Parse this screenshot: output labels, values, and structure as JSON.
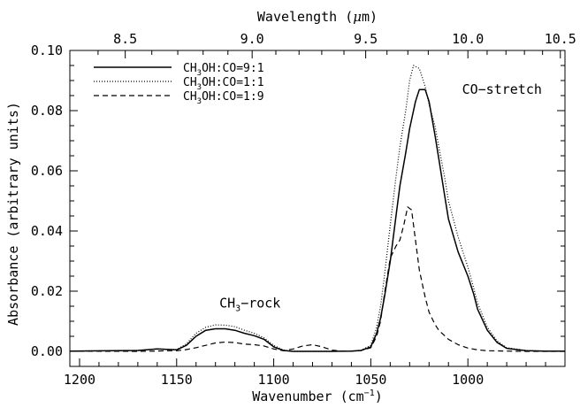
{
  "chart_data": {
    "type": "line",
    "xlabel": "Wavenumber (cm",
    "xlabel_sup": "−1",
    "xlabel_close": ")",
    "top_xlabel_pre": "Wavelength (",
    "top_xlabel_mu": "μ",
    "top_xlabel_post": "m)",
    "ylabel": "Absorbance (arbitrary units)",
    "xlim": [
      1205,
      950
    ],
    "ylim": [
      -0.005,
      0.1
    ],
    "x_reversed": true,
    "grid": false,
    "legend_position": "top-left",
    "x_ticks": [
      {
        "value": 1200,
        "label": "1200"
      },
      {
        "value": 1150,
        "label": "1150"
      },
      {
        "value": 1100,
        "label": "1100"
      },
      {
        "value": 1050,
        "label": "1050"
      },
      {
        "value": 1000,
        "label": "1000"
      }
    ],
    "x_minor_ticks": [
      1190,
      1180,
      1170,
      1160,
      1140,
      1130,
      1120,
      1110,
      1090,
      1080,
      1070,
      1060,
      1040,
      1030,
      1020,
      1010,
      990,
      980,
      970,
      960
    ],
    "y_ticks": [
      {
        "value": 0.0,
        "label": "0.00"
      },
      {
        "value": 0.02,
        "label": "0.02"
      },
      {
        "value": 0.04,
        "label": "0.04"
      },
      {
        "value": 0.06,
        "label": "0.06"
      },
      {
        "value": 0.08,
        "label": "0.08"
      },
      {
        "value": 0.1,
        "label": "0.10"
      }
    ],
    "y_minor_ticks": [
      0.005,
      0.01,
      0.015,
      0.025,
      0.03,
      0.035,
      0.045,
      0.05,
      0.055,
      0.065,
      0.07,
      0.075,
      0.085,
      0.09,
      0.095
    ],
    "top_ticks": [
      {
        "wavelength": 8.5,
        "label": "8.5"
      },
      {
        "wavelength": 9.0,
        "label": "9.0"
      },
      {
        "wavelength": 9.5,
        "label": "9.5"
      },
      {
        "wavelength": 10.0,
        "label": "10.0"
      },
      {
        "wavelength": 10.5,
        "label": "10.5"
      }
    ],
    "top_minor_ticks": [
      8.4,
      8.6,
      8.7,
      8.8,
      8.9,
      9.1,
      9.2,
      9.3,
      9.4,
      9.6,
      9.7,
      9.8,
      9.9,
      10.1,
      10.2,
      10.3,
      10.4
    ],
    "series": [
      {
        "name_main": "CH",
        "name_sub": "3",
        "name_rest": "OH:CO=9:1",
        "style": "solid",
        "x": [
          1205,
          1170,
          1160,
          1150,
          1145,
          1140,
          1135,
          1130,
          1125,
          1120,
          1115,
          1110,
          1105,
          1100,
          1095,
          1090,
          1080,
          1070,
          1060,
          1055,
          1050,
          1047,
          1045,
          1043,
          1040,
          1037,
          1035,
          1032,
          1030,
          1027,
          1025,
          1022,
          1020,
          1017,
          1015,
          1012,
          1010,
          1005,
          1000,
          997,
          995,
          990,
          985,
          980,
          970,
          960,
          950
        ],
        "y": [
          0.0001,
          0.0003,
          0.0008,
          0.0005,
          0.002,
          0.005,
          0.007,
          0.0075,
          0.0075,
          0.007,
          0.006,
          0.0052,
          0.004,
          0.0015,
          0.0003,
          0.0,
          0.0,
          0.0,
          0.0001,
          0.0003,
          0.0015,
          0.006,
          0.011,
          0.018,
          0.03,
          0.045,
          0.055,
          0.066,
          0.074,
          0.083,
          0.087,
          0.087,
          0.083,
          0.072,
          0.064,
          0.052,
          0.044,
          0.033,
          0.025,
          0.019,
          0.014,
          0.007,
          0.003,
          0.001,
          0.0002,
          0.0001,
          0.0001
        ]
      },
      {
        "name_main": "CH",
        "name_sub": "3",
        "name_rest": "OH:CO=1:1",
        "style": "dotted",
        "x": [
          1205,
          1170,
          1160,
          1150,
          1145,
          1140,
          1135,
          1130,
          1125,
          1120,
          1115,
          1110,
          1105,
          1100,
          1095,
          1090,
          1080,
          1070,
          1060,
          1055,
          1050,
          1047,
          1045,
          1043,
          1040,
          1037,
          1035,
          1032,
          1030,
          1028,
          1025,
          1022,
          1020,
          1017,
          1015,
          1012,
          1010,
          1005,
          1000,
          997,
          995,
          990,
          985,
          980,
          970,
          960,
          950
        ],
        "y": [
          0.0001,
          0.0003,
          0.0008,
          0.0006,
          0.0025,
          0.006,
          0.008,
          0.0088,
          0.0087,
          0.0082,
          0.007,
          0.006,
          0.0045,
          0.002,
          0.0004,
          0.0,
          0.0,
          0.0,
          0.0001,
          0.0004,
          0.002,
          0.008,
          0.015,
          0.025,
          0.042,
          0.058,
          0.068,
          0.08,
          0.09,
          0.095,
          0.094,
          0.088,
          0.082,
          0.075,
          0.068,
          0.058,
          0.05,
          0.038,
          0.028,
          0.021,
          0.016,
          0.008,
          0.0035,
          0.0012,
          0.0003,
          0.0001,
          0.0001
        ]
      },
      {
        "name_main": "CH",
        "name_sub": "3",
        "name_rest": "OH:CO=1:9",
        "style": "dashed",
        "x": [
          1205,
          1170,
          1160,
          1155,
          1150,
          1145,
          1140,
          1135,
          1130,
          1125,
          1120,
          1115,
          1110,
          1105,
          1100,
          1095,
          1090,
          1085,
          1080,
          1075,
          1070,
          1065,
          1060,
          1055,
          1050,
          1047,
          1045,
          1043,
          1040,
          1037,
          1035,
          1033,
          1031,
          1029,
          1027,
          1025,
          1022,
          1020,
          1017,
          1015,
          1010,
          1005,
          1000,
          995,
          990,
          980,
          970,
          960,
          950
        ],
        "y": [
          0.0001,
          0.0,
          0.0001,
          0.0002,
          0.0002,
          0.0006,
          0.0012,
          0.002,
          0.0028,
          0.0031,
          0.0029,
          0.0024,
          0.0022,
          0.0018,
          0.0008,
          0.0002,
          0.0008,
          0.0018,
          0.0022,
          0.0015,
          0.0004,
          0.0001,
          0.0001,
          0.0003,
          0.0012,
          0.005,
          0.01,
          0.019,
          0.031,
          0.035,
          0.037,
          0.042,
          0.048,
          0.047,
          0.037,
          0.027,
          0.018,
          0.013,
          0.009,
          0.007,
          0.004,
          0.0022,
          0.0011,
          0.0005,
          0.0002,
          0.0001,
          0.0,
          0.0,
          0.0
        ]
      }
    ],
    "annotations": [
      {
        "id": "co-stretch",
        "text": "CO−stretch",
        "x": 1003,
        "y": 0.087
      },
      {
        "id": "ch3-rock",
        "main": "CH",
        "sub": "3",
        "rest": "−rock",
        "x": 1128,
        "y": 0.016
      }
    ]
  }
}
